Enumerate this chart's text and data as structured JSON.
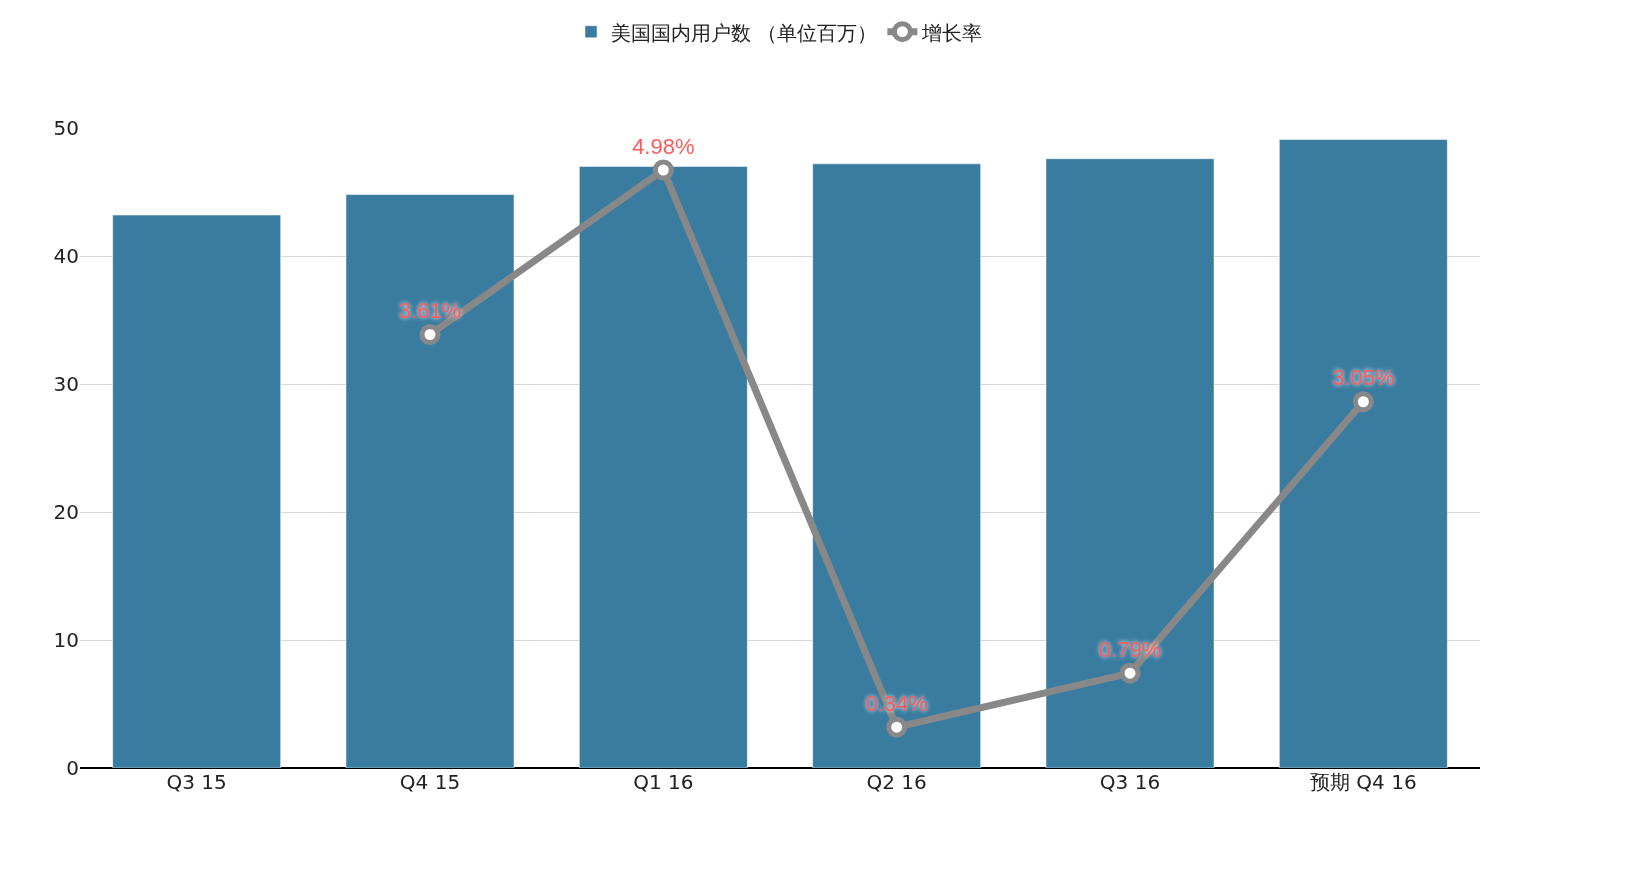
{
  "chart_data": {
    "type": "bar",
    "categories": [
      "Q3 15",
      "Q4 15",
      "Q1 16",
      "Q2 16",
      "Q3 16",
      "预期 Q4 16"
    ],
    "series": [
      {
        "name": "美国国内用户数 （单位百万）",
        "color": "#3a7ca0",
        "values": [
          43.2,
          44.8,
          47.0,
          47.2,
          47.6,
          49.1
        ]
      },
      {
        "name": "增长率",
        "type": "line",
        "axis": "y2",
        "color": "#888888",
        "marker": "circle",
        "values": [
          null,
          3.61,
          4.98,
          0.34,
          0.79,
          3.05
        ],
        "value_labels": [
          null,
          "3.61%",
          "4.98%",
          "0.34%",
          "0.79%",
          "3.05%"
        ]
      }
    ],
    "ylim": [
      0,
      50
    ],
    "yticks": [
      0,
      10,
      20,
      30,
      40,
      50
    ],
    "grid": "y",
    "legend": "top"
  }
}
